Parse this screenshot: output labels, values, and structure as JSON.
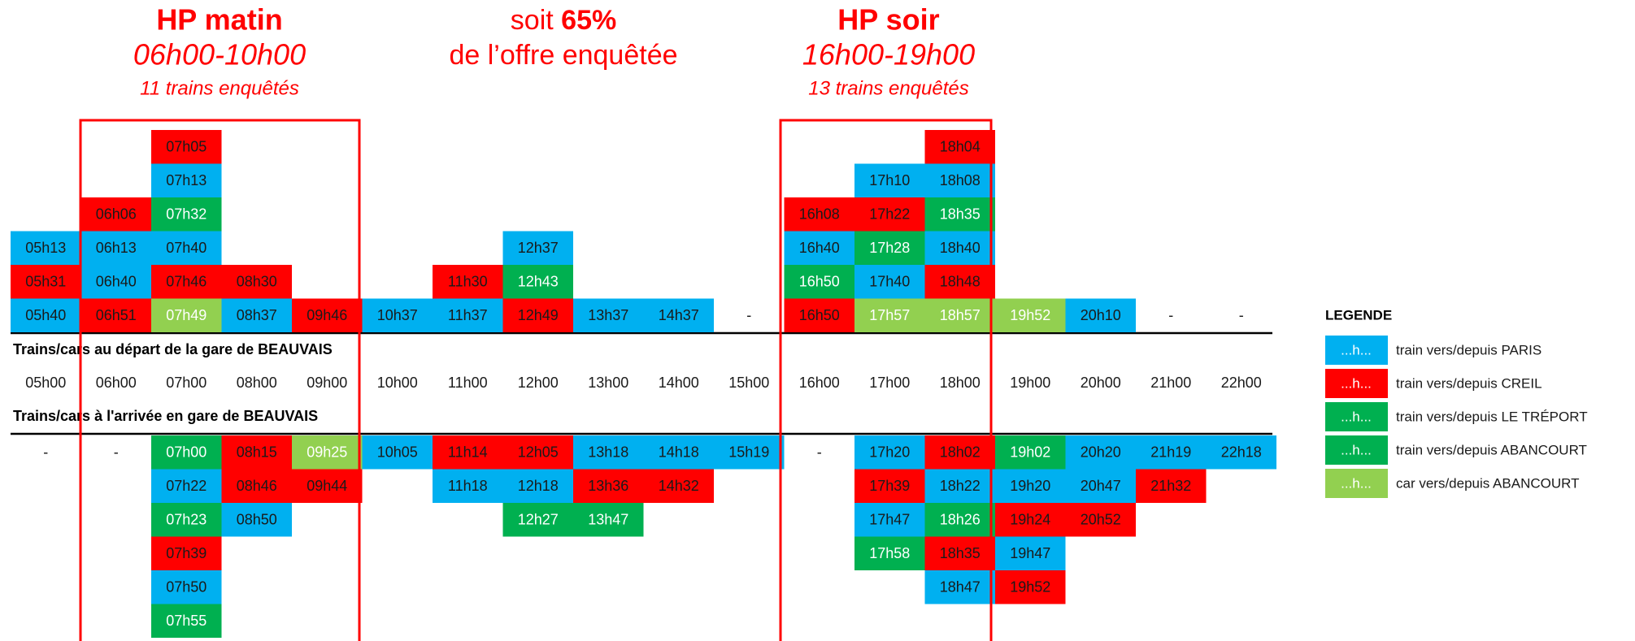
{
  "header": {
    "morning": {
      "title": "HP matin",
      "period": "06h00-10h00",
      "note": "11 trains enquêtés"
    },
    "center": {
      "prefix": "soit",
      "highlight": "65%",
      "line2": "de l’offre enquêtée"
    },
    "evening": {
      "title": "HP soir",
      "period": "16h00-19h00",
      "note": "13 trains enquêtés"
    }
  },
  "departures": {
    "label": "Trains/cars au départ de la gare de BEAUVAIS",
    "columns": [
      [
        {
          "text": "05h40",
          "color": "#00b0f0"
        },
        {
          "text": "05h31",
          "color": "#ff0000"
        },
        {
          "text": "05h13",
          "color": "#00b0f0"
        }
      ],
      [
        {
          "text": "06h51",
          "color": "#ff0000"
        },
        {
          "text": "06h40",
          "color": "#00b0f0"
        },
        {
          "text": "06h13",
          "color": "#00b0f0"
        },
        {
          "text": "06h06",
          "color": "#ff0000"
        }
      ],
      [
        {
          "text": "07h49",
          "color": "#92d050"
        },
        {
          "text": "07h46",
          "color": "#ff0000"
        },
        {
          "text": "07h40",
          "color": "#00b0f0"
        },
        {
          "text": "07h32",
          "color": "#00b050"
        },
        {
          "text": "07h13",
          "color": "#00b0f0"
        },
        {
          "text": "07h05",
          "color": "#ff0000"
        }
      ],
      [
        {
          "text": "08h37",
          "color": "#00b0f0"
        },
        {
          "text": "08h30",
          "color": "#ff0000"
        }
      ],
      [
        {
          "text": "09h46",
          "color": "#ff0000"
        }
      ],
      [
        {
          "text": "10h37",
          "color": "#00b0f0"
        }
      ],
      [
        {
          "text": "11h37",
          "color": "#00b0f0"
        },
        {
          "text": "11h30",
          "color": "#ff0000"
        }
      ],
      [
        {
          "text": "12h49",
          "color": "#ff0000"
        },
        {
          "text": "12h43",
          "color": "#00b050"
        },
        {
          "text": "12h37",
          "color": "#00b0f0"
        }
      ],
      [
        {
          "text": "13h37",
          "color": "#00b0f0"
        }
      ],
      [
        {
          "text": "14h37",
          "color": "#00b0f0"
        }
      ],
      [
        {
          "text": "-"
        }
      ],
      [
        {
          "text": "16h50",
          "color": "#ff0000"
        },
        {
          "text": "16h50",
          "color": "#00b050"
        },
        {
          "text": "16h40",
          "color": "#00b0f0"
        },
        {
          "text": "16h08",
          "color": "#ff0000"
        }
      ],
      [
        {
          "text": "17h57",
          "color": "#92d050"
        },
        {
          "text": "17h40",
          "color": "#00b0f0"
        },
        {
          "text": "17h28",
          "color": "#00b050"
        },
        {
          "text": "17h22",
          "color": "#ff0000"
        },
        {
          "text": "17h10",
          "color": "#00b0f0"
        }
      ],
      [
        {
          "text": "18h57",
          "color": "#92d050"
        },
        {
          "text": "18h48",
          "color": "#ff0000"
        },
        {
          "text": "18h40",
          "color": "#00b0f0"
        },
        {
          "text": "18h35",
          "color": "#00b050"
        },
        {
          "text": "18h08",
          "color": "#00b0f0"
        },
        {
          "text": "18h04",
          "color": "#ff0000"
        }
      ],
      [
        {
          "text": "19h52",
          "color": "#92d050"
        }
      ],
      [
        {
          "text": "20h10",
          "color": "#00b0f0"
        }
      ],
      [
        {
          "text": "-"
        }
      ],
      [
        {
          "text": "-"
        }
      ]
    ]
  },
  "hours": [
    "05h00",
    "06h00",
    "07h00",
    "08h00",
    "09h00",
    "10h00",
    "11h00",
    "12h00",
    "13h00",
    "14h00",
    "15h00",
    "16h00",
    "17h00",
    "18h00",
    "19h00",
    "20h00",
    "21h00",
    "22h00"
  ],
  "arrivals": {
    "label": "Trains/cars à l'arrivée en gare de BEAUVAIS",
    "columns": [
      [
        {
          "text": "-"
        }
      ],
      [
        {
          "text": "-"
        }
      ],
      [
        {
          "text": "07h00",
          "color": "#00b050"
        },
        {
          "text": "07h22",
          "color": "#00b0f0"
        },
        {
          "text": "07h23",
          "color": "#00b050"
        },
        {
          "text": "07h39",
          "color": "#ff0000"
        },
        {
          "text": "07h50",
          "color": "#00b0f0"
        },
        {
          "text": "07h55",
          "color": "#00b050"
        }
      ],
      [
        {
          "text": "08h15",
          "color": "#ff0000"
        },
        {
          "text": "08h46",
          "color": "#ff0000"
        },
        {
          "text": "08h50",
          "color": "#00b0f0"
        }
      ],
      [
        {
          "text": "09h25",
          "color": "#92d050"
        },
        {
          "text": "09h44",
          "color": "#ff0000"
        }
      ],
      [
        {
          "text": "10h05",
          "color": "#00b0f0"
        }
      ],
      [
        {
          "text": "11h14",
          "color": "#ff0000"
        },
        {
          "text": "11h18",
          "color": "#00b0f0"
        }
      ],
      [
        {
          "text": "12h05",
          "color": "#ff0000"
        },
        {
          "text": "12h18",
          "color": "#00b0f0"
        },
        {
          "text": "12h27",
          "color": "#00b050"
        }
      ],
      [
        {
          "text": "13h18",
          "color": "#00b0f0"
        },
        {
          "text": "13h36",
          "color": "#ff0000"
        },
        {
          "text": "13h47",
          "color": "#00b050"
        }
      ],
      [
        {
          "text": "14h18",
          "color": "#00b0f0"
        },
        {
          "text": "14h32",
          "color": "#ff0000"
        }
      ],
      [
        {
          "text": "15h19",
          "color": "#00b0f0"
        }
      ],
      [
        {
          "text": "-"
        }
      ],
      [
        {
          "text": "17h20",
          "color": "#00b0f0"
        },
        {
          "text": "17h39",
          "color": "#ff0000"
        },
        {
          "text": "17h47",
          "color": "#00b0f0"
        },
        {
          "text": "17h58",
          "color": "#00b050"
        }
      ],
      [
        {
          "text": "18h02",
          "color": "#ff0000"
        },
        {
          "text": "18h22",
          "color": "#00b0f0"
        },
        {
          "text": "18h26",
          "color": "#00b050"
        },
        {
          "text": "18h35",
          "color": "#ff0000"
        },
        {
          "text": "18h47",
          "color": "#00b0f0"
        }
      ],
      [
        {
          "text": "19h02",
          "color": "#00b050"
        },
        {
          "text": "19h20",
          "color": "#00b0f0"
        },
        {
          "text": "19h24",
          "color": "#ff0000"
        },
        {
          "text": "19h47",
          "color": "#00b0f0"
        },
        {
          "text": "19h52",
          "color": "#ff0000"
        }
      ],
      [
        {
          "text": "20h20",
          "color": "#00b0f0"
        },
        {
          "text": "20h47",
          "color": "#00b0f0"
        },
        {
          "text": "20h52",
          "color": "#ff0000"
        }
      ],
      [
        {
          "text": "21h19",
          "color": "#00b0f0"
        },
        {
          "text": "21h32",
          "color": "#ff0000"
        }
      ],
      [
        {
          "text": "22h18",
          "color": "#00b0f0"
        }
      ]
    ]
  },
  "legend": {
    "title": "LEGENDE",
    "items": [
      {
        "swatch": "...h...",
        "label": "train vers/depuis PARIS",
        "color": "#00b0f0"
      },
      {
        "swatch": "...h...",
        "label": "train vers/depuis CREIL",
        "color": "#ff0000"
      },
      {
        "swatch": "...h...",
        "label": "train vers/depuis LE TRÉPORT",
        "color": "#00b050"
      },
      {
        "swatch": "...h...",
        "label": "train vers/depuis ABANCOURT",
        "color": "#00b050"
      },
      {
        "swatch": "...h...",
        "label": "car vers/depuis ABANCOURT",
        "color": "#92d050"
      }
    ]
  }
}
